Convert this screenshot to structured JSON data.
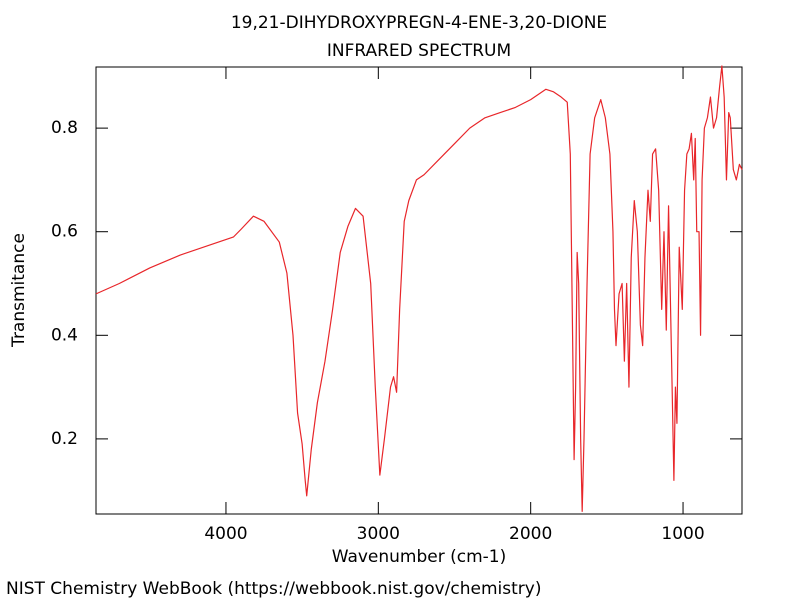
{
  "chart_data": {
    "type": "line",
    "title": "19,21-DIHYDROXYPREGN-4-ENE-3,20-DIONE",
    "subtitle": "INFRARED SPECTRUM",
    "x_label": "Wavenumber (cm-1)",
    "y_label": "Transmitance",
    "source": "NIST Chemistry WebBook (https://webbook.nist.gov/chemistry)",
    "color": "#e8262a",
    "xlim": [
      4853,
      613
    ],
    "ylim": [
      0.055,
      0.918
    ],
    "xticks": [
      4000,
      3000,
      2000,
      1000
    ],
    "yticks": [
      0.2,
      0.4,
      0.6,
      0.8
    ],
    "x": [
      4853,
      4700,
      4500,
      4300,
      4100,
      3950,
      3900,
      3820,
      3750,
      3650,
      3600,
      3560,
      3530,
      3500,
      3480,
      3470,
      3440,
      3400,
      3350,
      3300,
      3250,
      3200,
      3150,
      3100,
      3050,
      3020,
      2990,
      2960,
      2920,
      2900,
      2880,
      2860,
      2830,
      2800,
      2750,
      2700,
      2600,
      2500,
      2400,
      2300,
      2200,
      2100,
      2000,
      1900,
      1850,
      1800,
      1760,
      1740,
      1725,
      1715,
      1705,
      1695,
      1685,
      1672,
      1662,
      1650,
      1630,
      1610,
      1580,
      1540,
      1510,
      1480,
      1460,
      1450,
      1440,
      1420,
      1400,
      1385,
      1370,
      1355,
      1340,
      1320,
      1300,
      1280,
      1265,
      1250,
      1230,
      1215,
      1200,
      1180,
      1160,
      1140,
      1125,
      1110,
      1095,
      1075,
      1060,
      1050,
      1040,
      1025,
      1005,
      990,
      975,
      960,
      945,
      930,
      920,
      910,
      895,
      885,
      875,
      860,
      840,
      820,
      800,
      780,
      760,
      745,
      730,
      715,
      700,
      690,
      670,
      650,
      630,
      613
    ],
    "values": [
      0.48,
      0.5,
      0.53,
      0.555,
      0.575,
      0.59,
      0.605,
      0.63,
      0.62,
      0.58,
      0.52,
      0.4,
      0.25,
      0.19,
      0.12,
      0.09,
      0.18,
      0.27,
      0.35,
      0.45,
      0.56,
      0.61,
      0.645,
      0.63,
      0.5,
      0.3,
      0.13,
      0.2,
      0.3,
      0.32,
      0.29,
      0.45,
      0.62,
      0.66,
      0.7,
      0.71,
      0.74,
      0.77,
      0.8,
      0.82,
      0.83,
      0.84,
      0.855,
      0.875,
      0.87,
      0.86,
      0.85,
      0.75,
      0.4,
      0.16,
      0.3,
      0.56,
      0.5,
      0.2,
      0.06,
      0.2,
      0.5,
      0.75,
      0.82,
      0.855,
      0.82,
      0.75,
      0.6,
      0.45,
      0.38,
      0.48,
      0.5,
      0.35,
      0.5,
      0.3,
      0.55,
      0.66,
      0.6,
      0.42,
      0.38,
      0.55,
      0.68,
      0.62,
      0.75,
      0.76,
      0.68,
      0.45,
      0.6,
      0.41,
      0.65,
      0.35,
      0.12,
      0.3,
      0.23,
      0.57,
      0.45,
      0.68,
      0.75,
      0.76,
      0.79,
      0.7,
      0.78,
      0.6,
      0.6,
      0.4,
      0.7,
      0.8,
      0.82,
      0.86,
      0.8,
      0.82,
      0.88,
      0.92,
      0.86,
      0.7,
      0.83,
      0.82,
      0.72,
      0.7,
      0.73,
      0.72
    ]
  }
}
